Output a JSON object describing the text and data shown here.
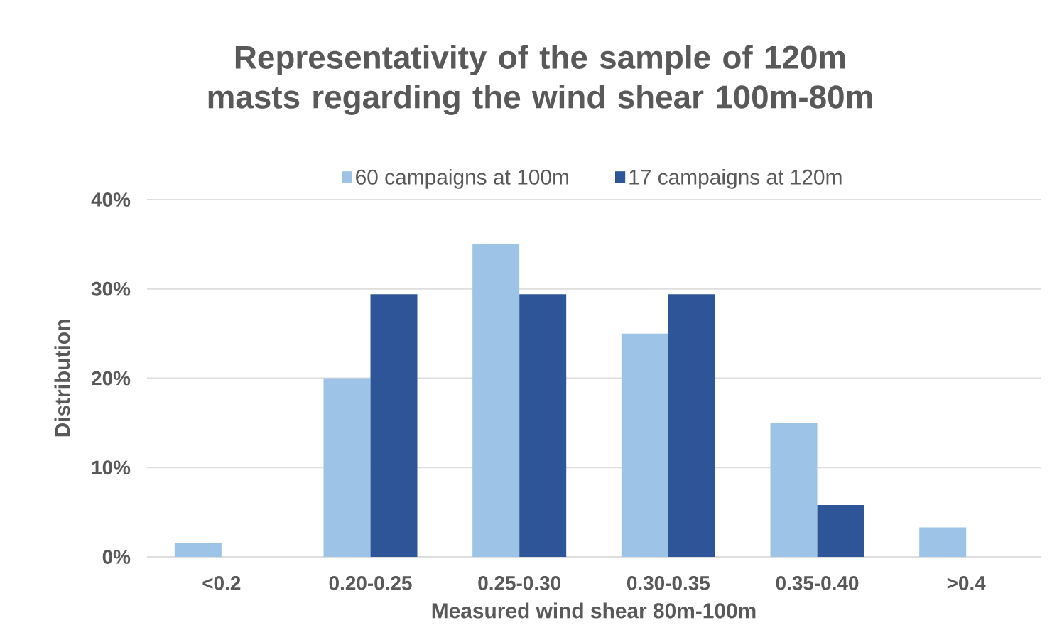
{
  "chart_data": {
    "type": "bar",
    "title": "Representativity of the sample of 120m masts regarding the wind shear 100m-80m",
    "xlabel": "Measured wind shear 80m-100m",
    "ylabel": "Distribution",
    "categories": [
      "<0.2",
      "0.20-0.25",
      "0.25-0.30",
      "0.30-0.35",
      "0.35-0.40",
      ">0.4"
    ],
    "series": [
      {
        "name": "60 campaigns at 100m",
        "color": "#9dc3e6",
        "values": [
          1.6,
          20.0,
          35.0,
          25.0,
          15.0,
          3.3
        ]
      },
      {
        "name": "17 campaigns at 120m",
        "color": "#2e5597",
        "values": [
          0,
          29.4,
          29.4,
          29.4,
          5.8,
          0
        ]
      }
    ],
    "ylim": [
      0,
      40
    ],
    "yticks": [
      {
        "value": 0,
        "label": "0%"
      },
      {
        "value": 10,
        "label": "10%"
      },
      {
        "value": 20,
        "label": "20%"
      },
      {
        "value": 30,
        "label": "30%"
      },
      {
        "value": 40,
        "label": "40%"
      }
    ],
    "grid": "y",
    "legend": "top"
  }
}
